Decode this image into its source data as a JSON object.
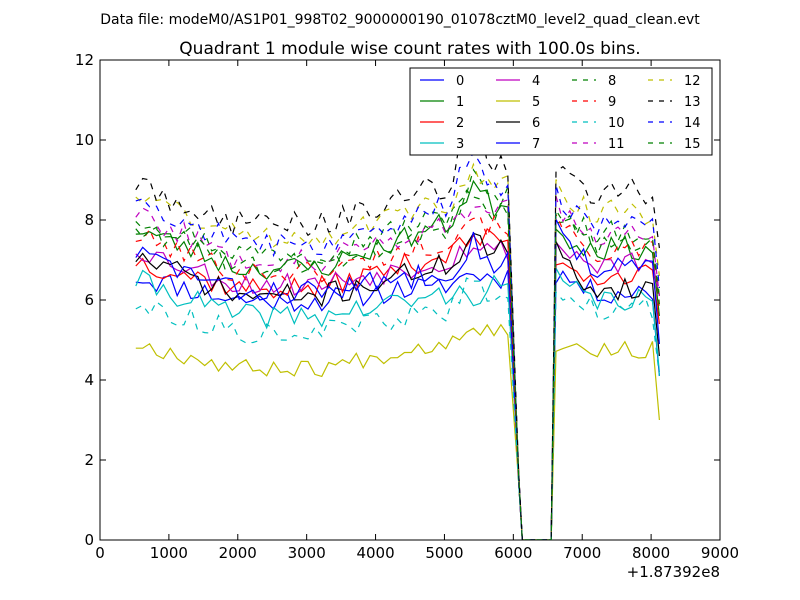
{
  "chart_data": {
    "type": "line",
    "suptitle": "Data file: modeM0/AS1P01_998T02_9000000190_01078cztM0_level2_quad_clean.evt",
    "title": "Quadrant 1 module wise count rates with 100.0s bins.",
    "xlabel": "",
    "ylabel": "",
    "x_offset_label": "+1.87392e8",
    "xlim": [
      0,
      9000
    ],
    "ylim": [
      0,
      12
    ],
    "xticks": [
      0,
      1000,
      2000,
      3000,
      4000,
      5000,
      6000,
      7000,
      8000,
      9000
    ],
    "yticks": [
      0,
      2,
      4,
      6,
      8,
      10,
      12
    ],
    "legend": {
      "position": "top-right",
      "columns": 4
    },
    "segments": [
      {
        "x_start": 520,
        "x_end": 5980,
        "step": 100
      },
      {
        "x_start": 6080,
        "x_end": 6130,
        "step": 50
      },
      {
        "x_start": 6550,
        "x_end": 6550,
        "step": 100
      },
      {
        "x_start": 6620,
        "x_end": 8150,
        "step": 100
      }
    ],
    "series": [
      {
        "name": "0",
        "color": "#0000ff",
        "dashed": false,
        "start": 6.6,
        "plateau": 6.0,
        "end": 6.6,
        "peak": 6.8,
        "post_start": 6.7,
        "post_mean": 6.2,
        "final": 4.1,
        "noise": 0.3,
        "seed": 11
      },
      {
        "name": "1",
        "color": "#008000",
        "dashed": false,
        "start": 7.8,
        "plateau": 6.8,
        "end": 8.5,
        "peak": 9.2,
        "post_start": 7.7,
        "post_mean": 7.3,
        "final": 5.6,
        "noise": 0.3,
        "seed": 23
      },
      {
        "name": "2",
        "color": "#ff0000",
        "dashed": false,
        "start": 7.0,
        "plateau": 6.3,
        "end": 7.6,
        "peak": 7.8,
        "post_start": 7.1,
        "post_mean": 6.6,
        "final": 5.4,
        "noise": 0.3,
        "seed": 37
      },
      {
        "name": "3",
        "color": "#00bfbf",
        "dashed": false,
        "start": 6.5,
        "plateau": 5.6,
        "end": 6.4,
        "peak": 6.3,
        "post_start": 6.5,
        "post_mean": 6.0,
        "final": 4.2,
        "noise": 0.3,
        "seed": 41
      },
      {
        "name": "4",
        "color": "#bf00bf",
        "dashed": false,
        "start": 7.3,
        "plateau": 6.4,
        "end": 7.3,
        "peak": 7.6,
        "post_start": 7.4,
        "post_mean": 6.9,
        "final": 6.1,
        "noise": 0.3,
        "seed": 53
      },
      {
        "name": "5",
        "color": "#bfbf00",
        "dashed": false,
        "start": 4.9,
        "plateau": 4.3,
        "end": 5.3,
        "peak": 5.6,
        "post_start": 4.9,
        "post_mean": 4.75,
        "final": 3.0,
        "noise": 0.22,
        "seed": 67
      },
      {
        "name": "6",
        "color": "#000000",
        "dashed": false,
        "start": 7.1,
        "plateau": 6.1,
        "end": 7.3,
        "peak": 7.8,
        "post_start": 7.2,
        "post_mean": 6.3,
        "final": 4.6,
        "noise": 0.3,
        "seed": 71
      },
      {
        "name": "7",
        "color": "#0000ff",
        "dashed": false,
        "start": 7.2,
        "plateau": 6.2,
        "end": 7.0,
        "peak": 7.6,
        "post_start": 8.0,
        "post_mean": 6.8,
        "final": 4.9,
        "noise": 0.3,
        "seed": 83
      },
      {
        "name": "8",
        "color": "#008000",
        "dashed": true,
        "start": 8.1,
        "plateau": 7.2,
        "end": 8.6,
        "peak": 9.3,
        "post_start": 8.2,
        "post_mean": 7.7,
        "final": 6.1,
        "noise": 0.3,
        "seed": 97
      },
      {
        "name": "9",
        "color": "#ff0000",
        "dashed": true,
        "start": 7.6,
        "plateau": 6.7,
        "end": 7.9,
        "peak": 8.4,
        "post_start": 7.9,
        "post_mean": 7.2,
        "final": 5.8,
        "noise": 0.3,
        "seed": 101
      },
      {
        "name": "10",
        "color": "#00bfbf",
        "dashed": true,
        "start": 5.9,
        "plateau": 5.2,
        "end": 6.0,
        "peak": 6.6,
        "post_start": 6.2,
        "post_mean": 5.8,
        "final": 4.1,
        "noise": 0.28,
        "seed": 113
      },
      {
        "name": "11",
        "color": "#bf00bf",
        "dashed": true,
        "start": 8.2,
        "plateau": 7.0,
        "end": 8.4,
        "peak": 8.6,
        "post_start": 8.3,
        "post_mean": 7.6,
        "final": 6.1,
        "noise": 0.3,
        "seed": 127
      },
      {
        "name": "12",
        "color": "#bfbf00",
        "dashed": true,
        "start": 8.7,
        "plateau": 7.6,
        "end": 8.9,
        "peak": 9.4,
        "post_start": 8.8,
        "post_mean": 8.2,
        "final": 6.6,
        "noise": 0.3,
        "seed": 131
      },
      {
        "name": "13",
        "color": "#000000",
        "dashed": true,
        "start": 8.9,
        "plateau": 7.9,
        "end": 9.4,
        "peak": 10.8,
        "post_start": 9.4,
        "post_mean": 8.7,
        "final": 7.3,
        "noise": 0.35,
        "seed": 149
      },
      {
        "name": "14",
        "color": "#0000ff",
        "dashed": true,
        "start": 8.6,
        "plateau": 7.4,
        "end": 8.9,
        "peak": 10.2,
        "post_start": 8.6,
        "post_mean": 7.9,
        "final": 6.3,
        "noise": 0.3,
        "seed": 157
      },
      {
        "name": "15",
        "color": "#008000",
        "dashed": true,
        "start": 7.9,
        "plateau": 6.9,
        "end": 8.3,
        "peak": 9.0,
        "post_start": 8.1,
        "post_mean": 7.4,
        "final": 5.9,
        "noise": 0.3,
        "seed": 163
      }
    ]
  }
}
